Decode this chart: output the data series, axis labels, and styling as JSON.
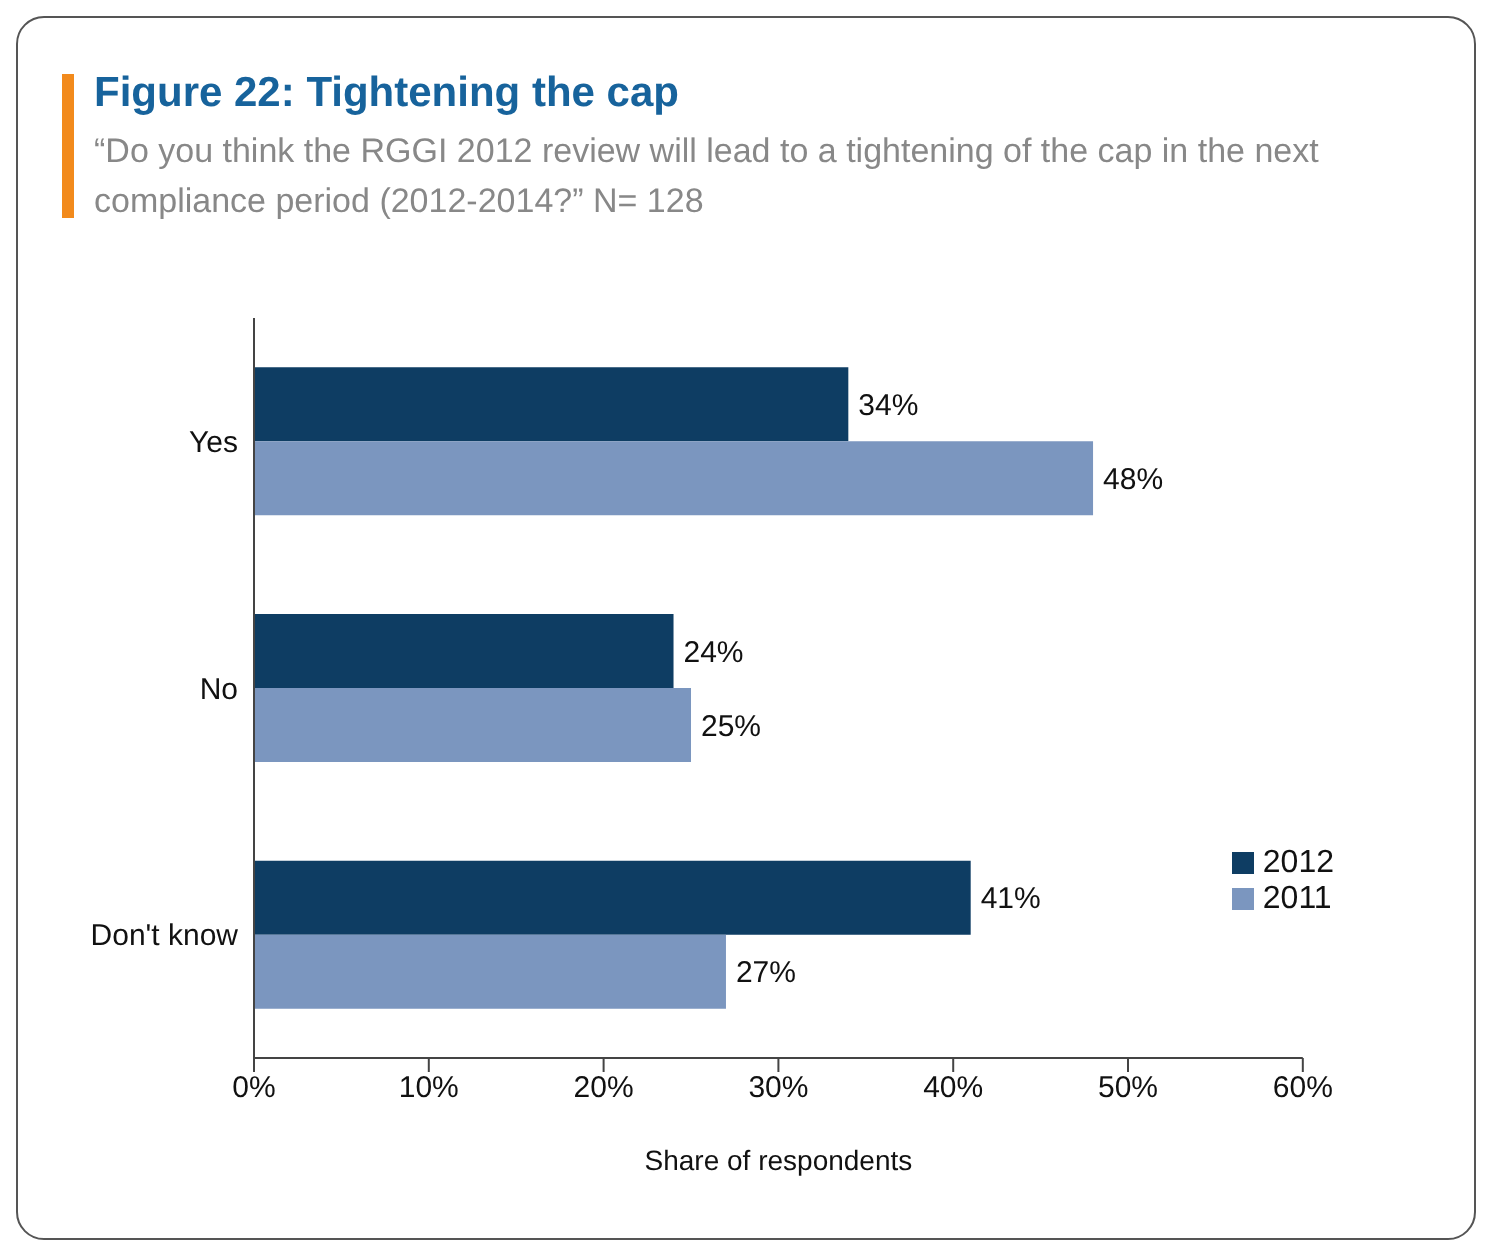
{
  "chart_data": {
    "type": "bar",
    "orientation": "horizontal",
    "title": "Figure 22: Tightening the cap",
    "subtitle": "“Do you think the RGGI 2012 review will lead to a tightening of the cap in the next compliance period (2012-2014?” N= 128",
    "categories": [
      "Yes",
      "No",
      "Don't know"
    ],
    "series": [
      {
        "name": "2012",
        "color": "#0e3d63",
        "values": [
          34,
          24,
          41
        ],
        "value_labels": [
          "34%",
          "24%",
          "41%"
        ]
      },
      {
        "name": "2011",
        "color": "#7b96bf",
        "values": [
          48,
          25,
          27
        ],
        "value_labels": [
          "48%",
          "25%",
          "27%"
        ]
      }
    ],
    "xlabel": "Share of respondents",
    "xlim": [
      0,
      60
    ],
    "xticks": [
      {
        "value": 0,
        "label": "0%"
      },
      {
        "value": 10,
        "label": "10%"
      },
      {
        "value": 20,
        "label": "20%"
      },
      {
        "value": 30,
        "label": "30%"
      },
      {
        "value": 40,
        "label": "40%"
      },
      {
        "value": 50,
        "label": "50%"
      },
      {
        "value": 60,
        "label": "60%"
      }
    ],
    "grid": false,
    "legend": "bottom right"
  }
}
